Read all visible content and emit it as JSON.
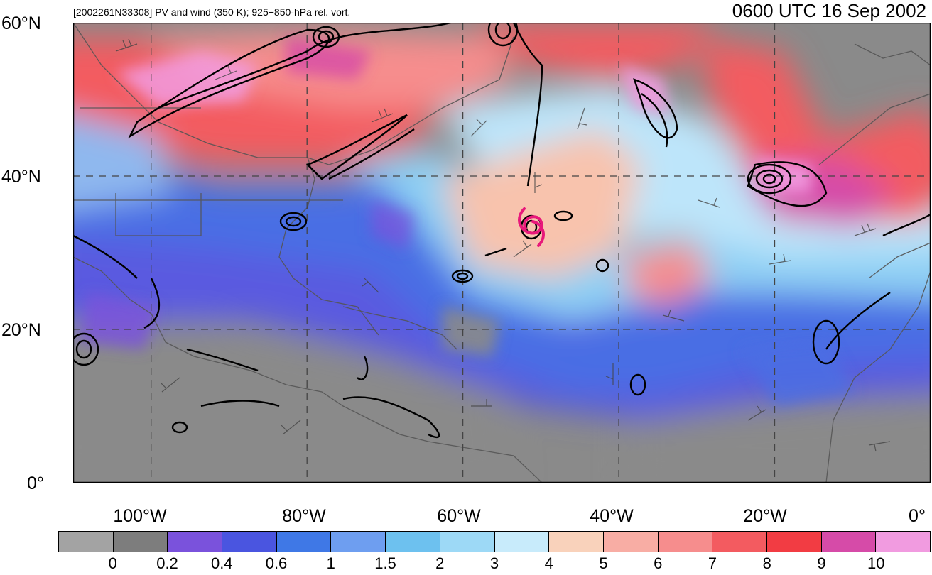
{
  "header": {
    "subtitle": "[2002261N33308] PV and wind (350 K); 925−850-hPa rel. vort.",
    "datetime": "0600 UTC 16 Sep 2002"
  },
  "axes": {
    "lat_labels": [
      "60°N",
      "40°N",
      "20°N",
      "0°"
    ],
    "lon_labels": [
      "100°W",
      "80°W",
      "60°W",
      "40°W",
      "20°W",
      "0°"
    ]
  },
  "map": {
    "lon_range": [
      -110,
      0
    ],
    "lat_range": [
      0,
      60
    ],
    "gridlines": "dashed",
    "storm_symbol": "tropical-cyclone-icon",
    "storm_location": {
      "lon": -50.5,
      "lat": 33.3
    },
    "storm_color": "#e8187a"
  },
  "colorbar": {
    "labels": [
      "0",
      "0.2",
      "0.4",
      "0.6",
      "1",
      "1.5",
      "2",
      "3",
      "4",
      "5",
      "6",
      "7",
      "8",
      "9",
      "10"
    ],
    "colors": [
      "#a3a3a3",
      "#7d7d7d",
      "#7a52dc",
      "#4a55e0",
      "#3f78e6",
      "#6e9ef0",
      "#6dc1ef",
      "#9dd9f6",
      "#c8ebfb",
      "#f9d2bb",
      "#f8ada4",
      "#f68d8d",
      "#f35b60",
      "#f23c43",
      "#d64ba8",
      "#f19be0"
    ]
  }
}
